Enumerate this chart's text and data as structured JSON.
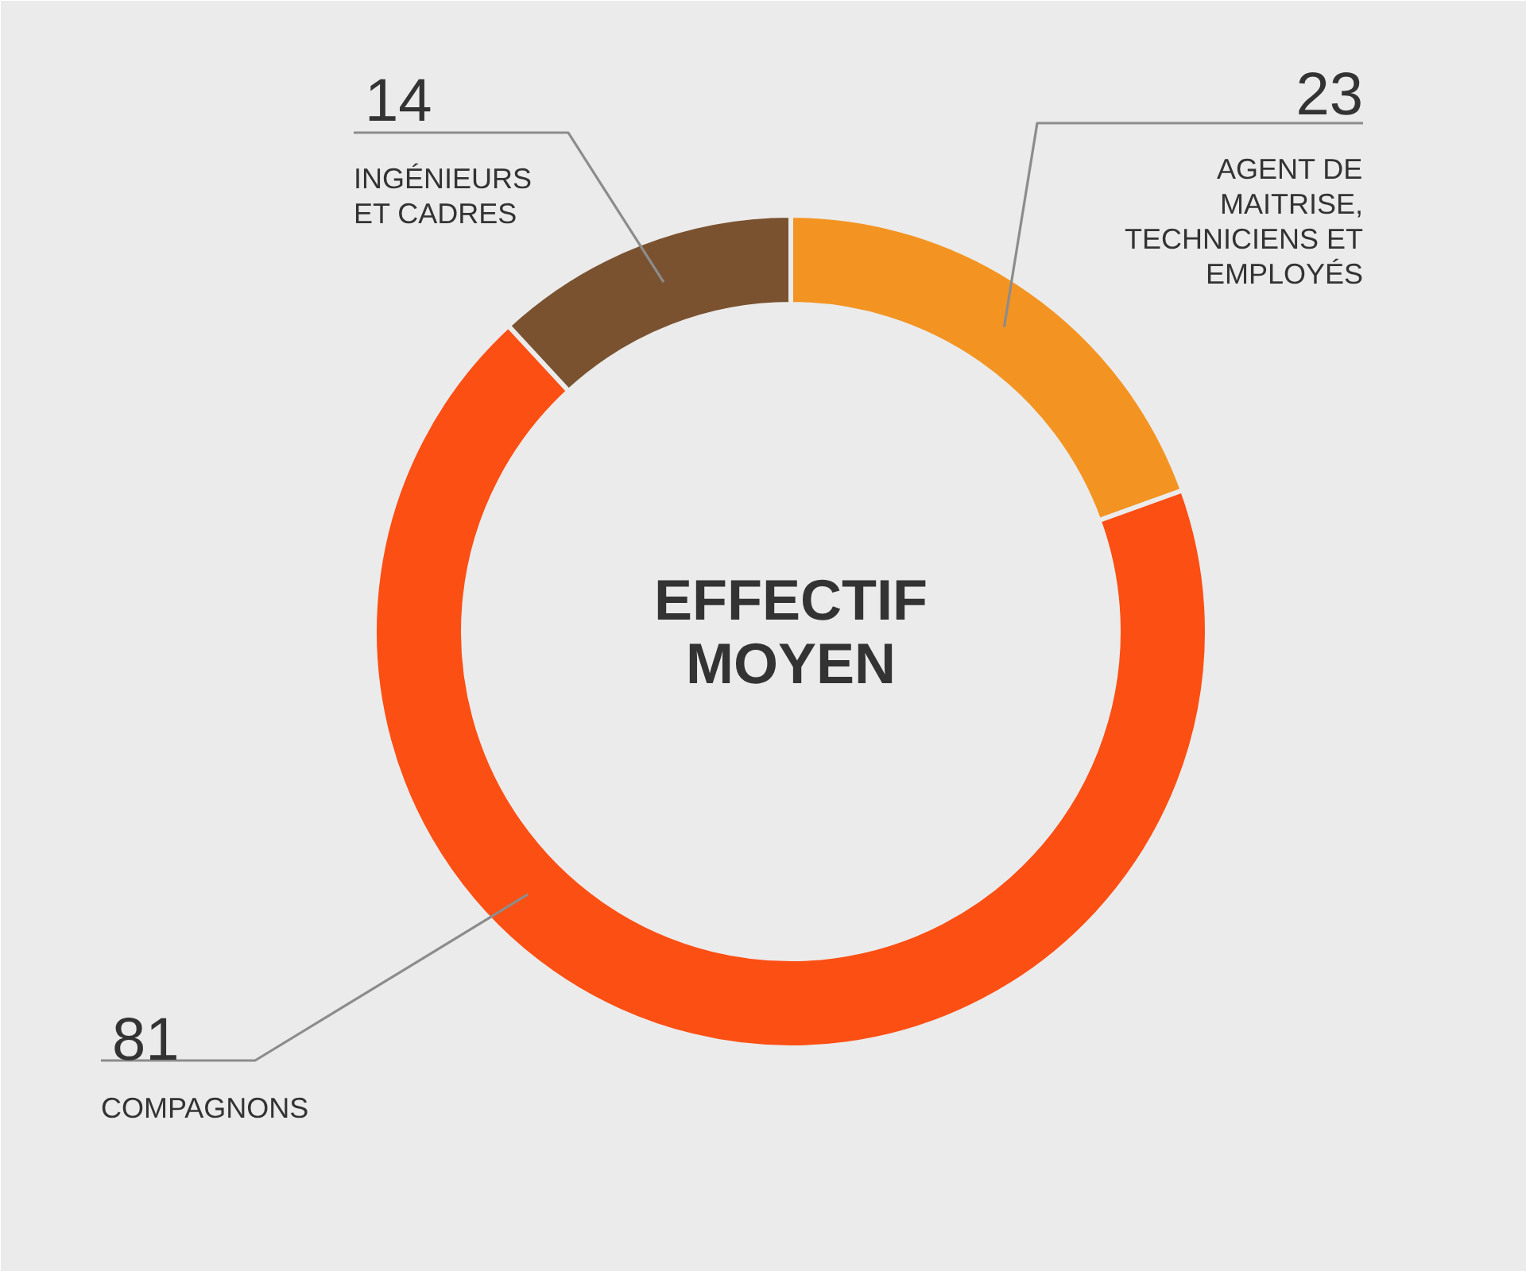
{
  "chart_data": {
    "type": "donut",
    "title": "EFFECTIF MOYEN",
    "categories": [
      "AGENT DE MAITRISE, TECHNICIENS ET EMPLOYÉS",
      "COMPAGNONS",
      "INGÉNIEURS ET CADRES"
    ],
    "values": [
      23,
      81,
      14
    ],
    "colors": [
      "#f39422",
      "#fc4f14",
      "#7a5230"
    ],
    "data_labels": true
  }
}
